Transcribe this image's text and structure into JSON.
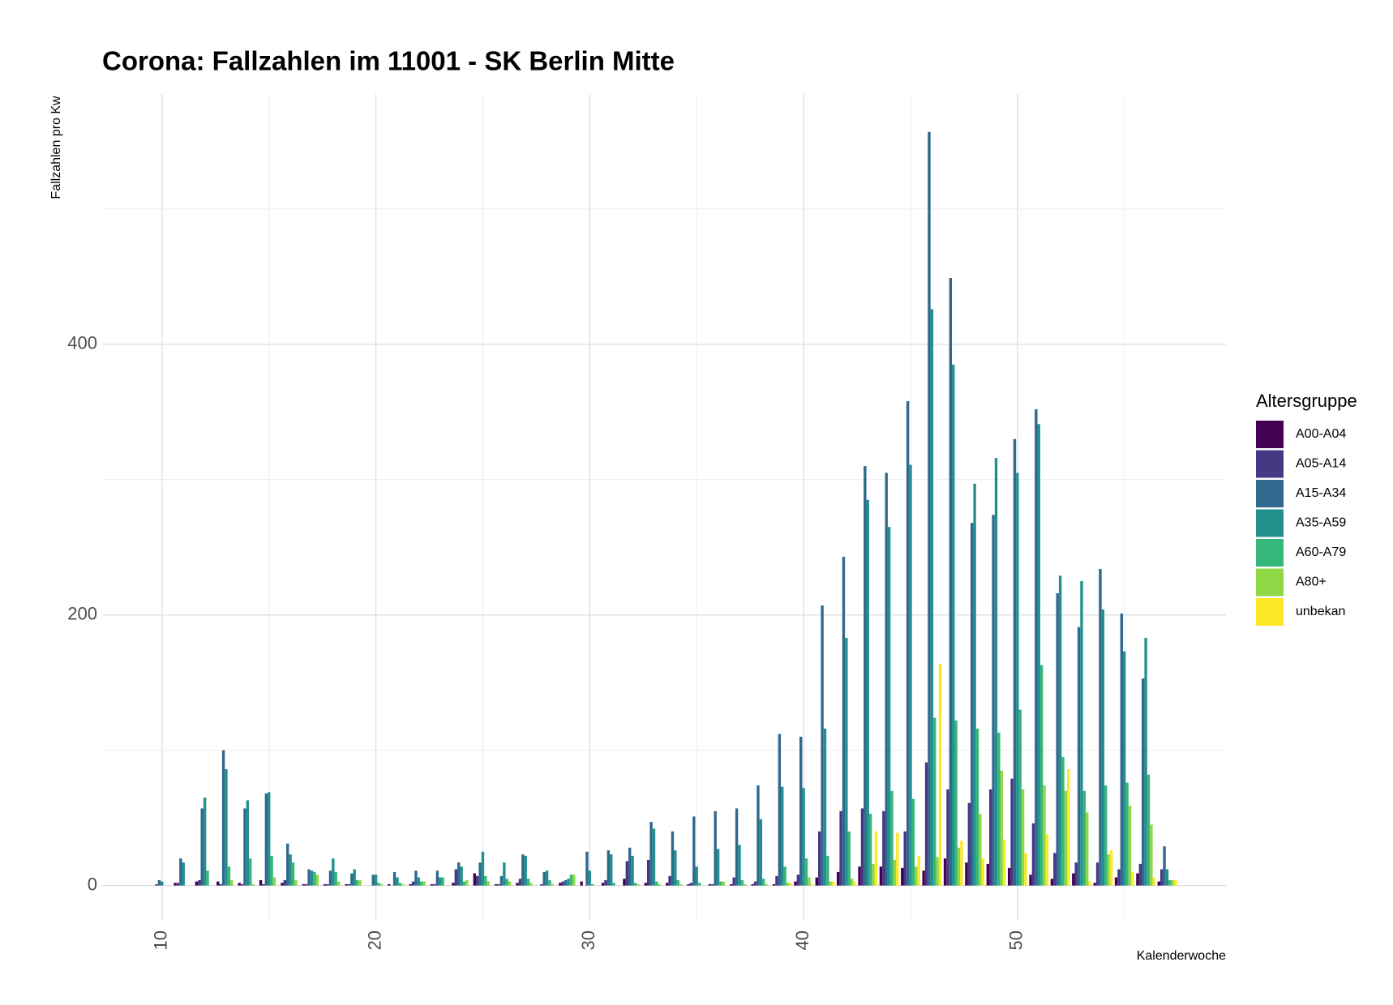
{
  "chart_data": {
    "type": "bar",
    "title": "Corona: Fallzahlen im 11001 - SK Berlin Mitte",
    "y_label": "Fallzahlen pro Kw",
    "x_label": "Kalenderwoche",
    "legend_title": "Altersgruppe",
    "legend": "right",
    "grid": true,
    "x": [
      10,
      11,
      12,
      13,
      14,
      15,
      16,
      17,
      18,
      19,
      20,
      21,
      22,
      23,
      24,
      25,
      26,
      27,
      28,
      29,
      30,
      31,
      32,
      33,
      34,
      35,
      36,
      37,
      38,
      39,
      40,
      41,
      42,
      43,
      44,
      45,
      46,
      47,
      48,
      49,
      50,
      51,
      52,
      53,
      54,
      55,
      56,
      57
    ],
    "xlim": [
      7.2,
      59.75
    ],
    "xticks": [
      10,
      20,
      30,
      40,
      50
    ],
    "xticks_minor": [
      15,
      25,
      35,
      45,
      55
    ],
    "ylim": [
      -26,
      585
    ],
    "yticks": [
      0,
      200,
      400
    ],
    "yticks_minor": [
      100,
      300,
      500
    ],
    "series": [
      {
        "name": "A00-A04",
        "color": "#440154",
        "values": [
          0,
          2,
          3,
          3,
          2,
          4,
          2,
          1,
          1,
          1,
          0,
          1,
          1,
          1,
          2,
          9,
          1,
          2,
          0,
          2,
          3,
          2,
          5,
          2,
          2,
          1,
          1,
          1,
          1,
          1,
          3,
          6,
          10,
          14,
          14,
          13,
          11,
          20,
          17,
          16,
          13,
          8,
          5,
          9,
          2,
          6,
          9,
          3
        ]
      },
      {
        "name": "A05-A14",
        "color": "#443A83",
        "values": [
          1,
          2,
          4,
          1,
          1,
          1,
          4,
          1,
          1,
          1,
          0,
          0,
          3,
          1,
          12,
          7,
          1,
          5,
          1,
          3,
          0,
          4,
          18,
          19,
          7,
          2,
          1,
          6,
          3,
          7,
          8,
          40,
          55,
          57,
          55,
          40,
          91,
          71,
          61,
          71,
          79,
          46,
          24,
          17,
          17,
          12,
          16,
          12
        ]
      },
      {
        "name": "A15-A34",
        "color": "#31688E",
        "values": [
          4,
          20,
          57,
          100,
          57,
          68,
          31,
          12,
          11,
          9,
          8,
          10,
          11,
          11,
          17,
          17,
          7,
          23,
          10,
          4,
          25,
          26,
          28,
          47,
          40,
          51,
          55,
          57,
          74,
          112,
          110,
          207,
          243,
          310,
          305,
          358,
          557,
          449,
          268,
          274,
          330,
          352,
          216,
          191,
          234,
          201,
          153,
          29
        ]
      },
      {
        "name": "A35-A59",
        "color": "#21908C",
        "values": [
          3,
          17,
          65,
          86,
          63,
          69,
          23,
          11,
          20,
          12,
          8,
          6,
          6,
          6,
          14,
          25,
          17,
          22,
          11,
          5,
          11,
          23,
          22,
          42,
          26,
          14,
          27,
          30,
          49,
          73,
          72,
          116,
          183,
          285,
          265,
          311,
          426,
          385,
          297,
          316,
          305,
          341,
          229,
          225,
          204,
          173,
          183,
          12
        ]
      },
      {
        "name": "A60-A79",
        "color": "#35B779",
        "values": [
          0,
          0,
          11,
          14,
          20,
          22,
          17,
          10,
          10,
          4,
          2,
          2,
          3,
          6,
          3,
          7,
          5,
          5,
          4,
          8,
          1,
          2,
          2,
          3,
          4,
          2,
          3,
          4,
          5,
          14,
          20,
          22,
          40,
          53,
          70,
          64,
          124,
          122,
          116,
          113,
          130,
          163,
          95,
          70,
          74,
          76,
          82,
          4
        ]
      },
      {
        "name": "A80+",
        "color": "#8FD744",
        "values": [
          0,
          0,
          0,
          4,
          1,
          6,
          4,
          8,
          3,
          4,
          1,
          1,
          3,
          0,
          4,
          3,
          3,
          2,
          1,
          8,
          0,
          0,
          1,
          1,
          1,
          0,
          3,
          1,
          1,
          2,
          6,
          3,
          5,
          16,
          19,
          14,
          21,
          28,
          53,
          85,
          71,
          74,
          70,
          54,
          23,
          59,
          45,
          4
        ]
      },
      {
        "name": "unbekan",
        "color": "#FDE725",
        "values": [
          0,
          0,
          0,
          0,
          0,
          0,
          0,
          0,
          0,
          0,
          0,
          0,
          0,
          0,
          0,
          0,
          0,
          0,
          0,
          0,
          0,
          0,
          0,
          0,
          0,
          0,
          0,
          0,
          0,
          2,
          1,
          3,
          3,
          40,
          39,
          22,
          164,
          33,
          20,
          34,
          24,
          38,
          86,
          3,
          26,
          10,
          6,
          4
        ]
      }
    ]
  }
}
